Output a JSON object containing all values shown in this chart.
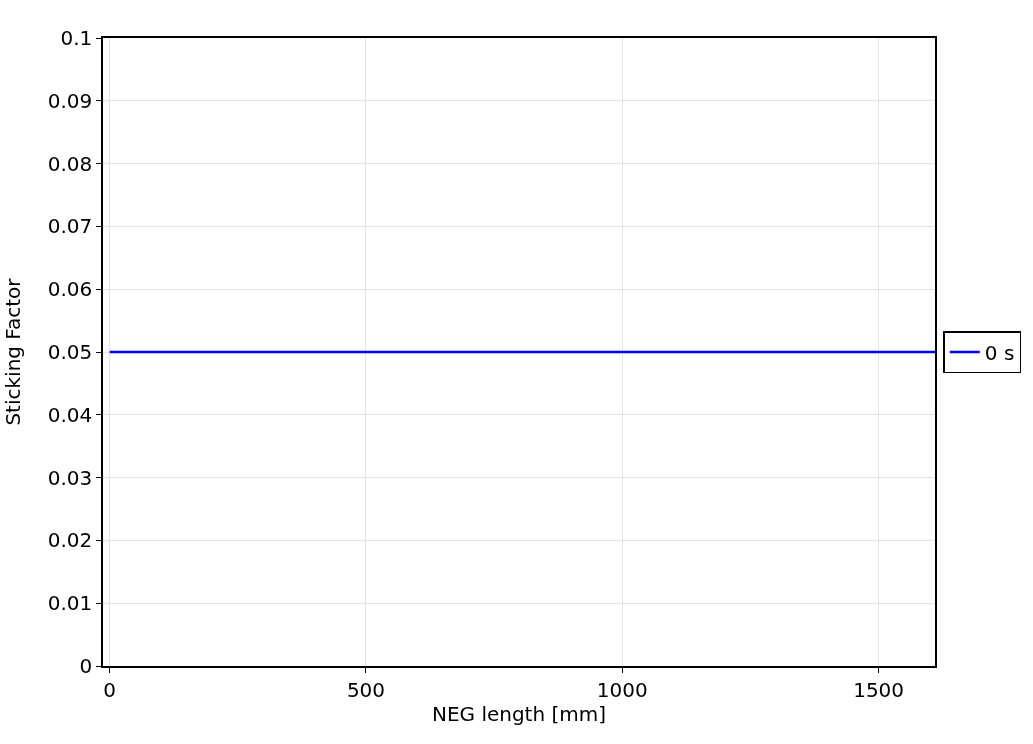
{
  "chart_data": {
    "type": "line",
    "xlabel": "NEG length [mm]",
    "ylabel": "Sticking Factor",
    "x": [
      0,
      1610
    ],
    "series": [
      {
        "name": "0 s",
        "color": "#0000ff",
        "values": [
          0.05,
          0.05
        ]
      }
    ],
    "xlim": [
      -13,
      1610
    ],
    "xticks": [
      0,
      500,
      1000,
      1500
    ],
    "ylim": [
      0,
      0.1
    ],
    "yticks": [
      0,
      0.01,
      0.02,
      0.03,
      0.04,
      0.05,
      0.06,
      0.07,
      0.08,
      0.09,
      0.1
    ],
    "grid": true,
    "legend": "right",
    "marker": "none",
    "line_style": "solid"
  }
}
